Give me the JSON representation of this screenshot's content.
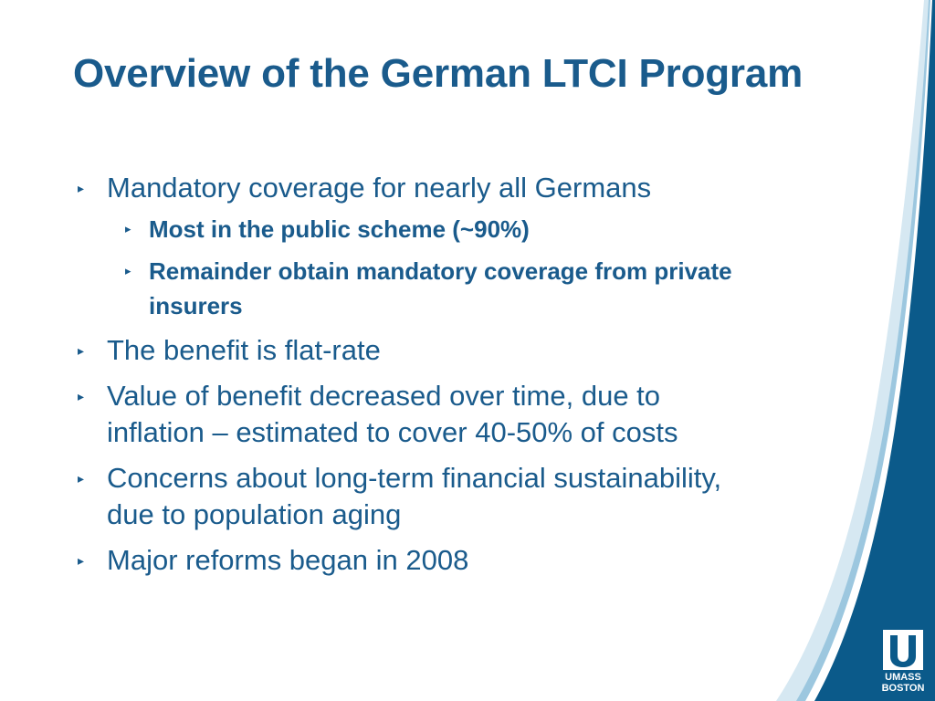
{
  "slide": {
    "title": "Overview of the German LTCI Program",
    "bullets": [
      {
        "text": "Mandatory coverage for nearly all Germans",
        "subbullets": [
          "Most in the public scheme (~90%)",
          "Remainder obtain mandatory coverage from private insurers"
        ]
      },
      {
        "text": "The benefit is flat-rate"
      },
      {
        "text": "Value of benefit decreased over time, due to inflation – estimated to cover 40-50% of costs"
      },
      {
        "text": "Concerns about long-term financial sustainability, due to population aging"
      },
      {
        "text": "Major reforms began in 2008"
      }
    ],
    "bullet_marker": "▸"
  },
  "logo": {
    "line1": "UMASS",
    "line2": "BOSTON"
  },
  "colors": {
    "title_text": "#1a5b8c",
    "body_text": "#1a5b8c",
    "accent_dark": "#0b5a8a",
    "accent_light": "#cfe3ef"
  }
}
